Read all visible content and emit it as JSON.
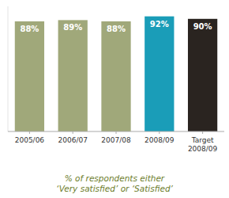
{
  "chart_data": {
    "type": "bar",
    "categories": [
      "2005/06",
      "2006/07",
      "2007/08",
      "2008/09",
      "Target\n2008/09"
    ],
    "values": [
      88,
      89,
      88,
      92,
      90
    ],
    "value_labels": [
      "88%",
      "89%",
      "88%",
      "92%",
      "90%"
    ],
    "colors": [
      "#a0a87a",
      "#a0a87a",
      "#a0a87a",
      "#1a9db8",
      "#2a2420"
    ],
    "xlabel": "% of respondents either\n‘Very satisfied’ or ‘Satisfied’",
    "ylim": [
      0,
      100
    ],
    "data_labels": true,
    "tick_labels": "x",
    "grid": false
  }
}
